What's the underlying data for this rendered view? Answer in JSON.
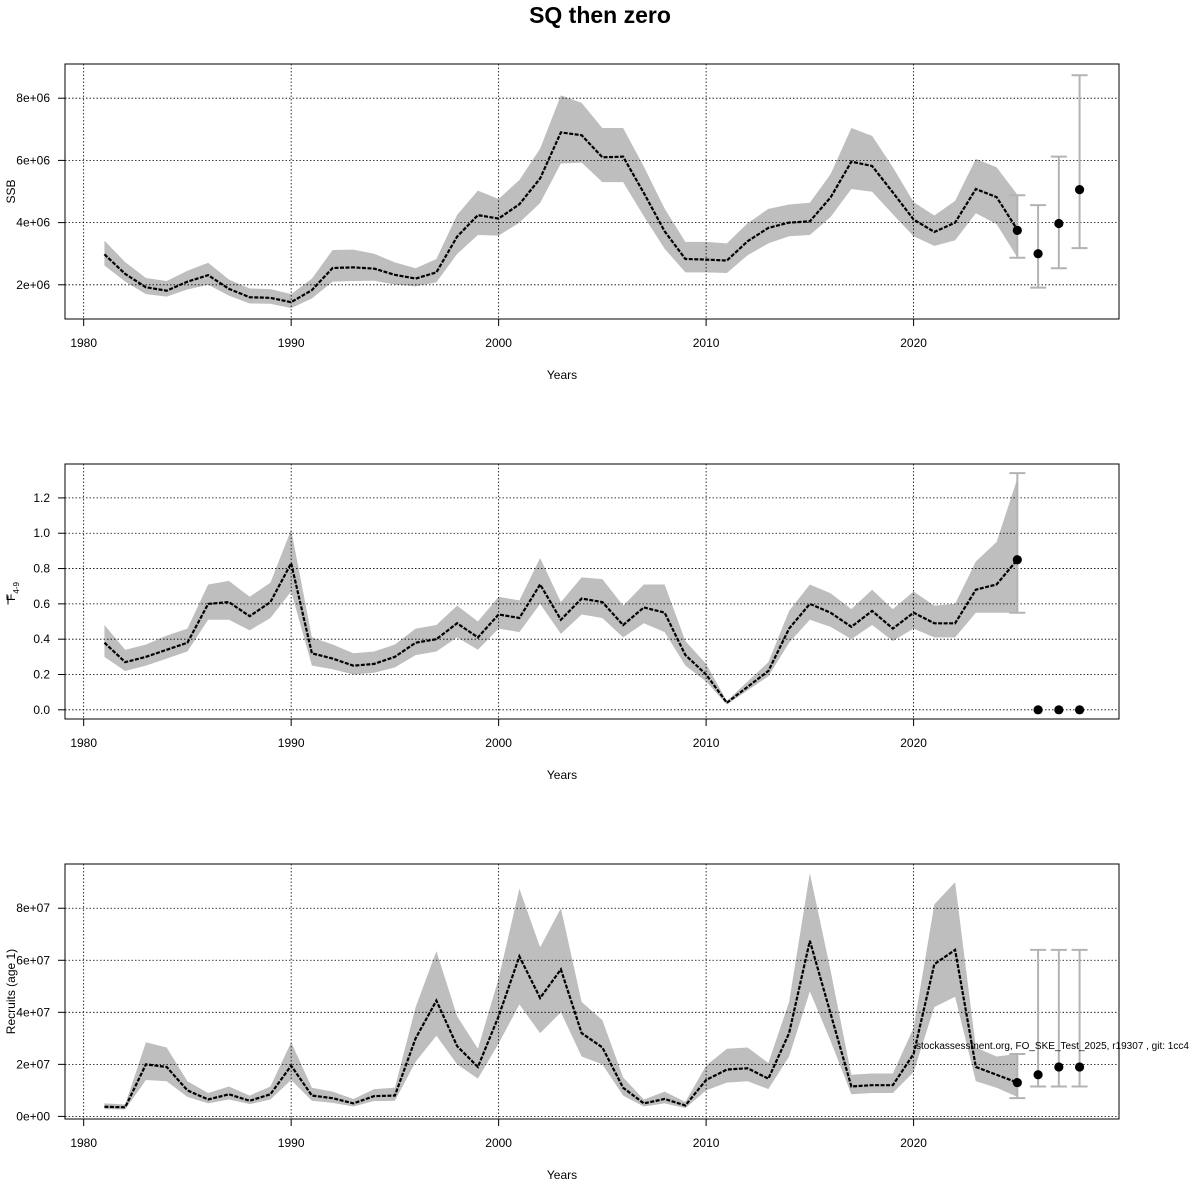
{
  "title": "SQ then zero",
  "credit": "stockassessment.org, FO_SKE_Test_2025, r19307 , git: 1cc4",
  "colors": {
    "band": "#bebebe",
    "line": "#000000",
    "grid": "#000000",
    "errorbar": "#b3b3b3",
    "point": "#000000"
  },
  "chart_data": [
    {
      "type": "line",
      "id": "ssb",
      "ylabel": "SSB",
      "xlabel": "Years",
      "xlim": [
        1979.1,
        2029.9
      ],
      "ylim": [
        900000,
        9100000
      ],
      "x_ticks": [
        1980,
        1990,
        2000,
        2010,
        2020
      ],
      "y_ticks": [
        2000000,
        4000000,
        6000000,
        8000000
      ],
      "y_tick_labels": [
        "2e+06",
        "4e+06",
        "6e+06",
        "8e+06"
      ],
      "grid": true,
      "years": [
        1981,
        1982,
        1983,
        1984,
        1985,
        1986,
        1987,
        1988,
        1989,
        1990,
        1991,
        1992,
        1993,
        1994,
        1995,
        1996,
        1997,
        1998,
        1999,
        2000,
        2001,
        2002,
        2003,
        2004,
        2005,
        2006,
        2007,
        2008,
        2009,
        2010,
        2011,
        2012,
        2013,
        2014,
        2015,
        2016,
        2017,
        2018,
        2019,
        2020,
        2021,
        2022,
        2023,
        2024,
        2025
      ],
      "estimate": [
        2980000,
        2350000,
        1920000,
        1810000,
        2100000,
        2310000,
        1870000,
        1600000,
        1580000,
        1440000,
        1830000,
        2540000,
        2560000,
        2520000,
        2320000,
        2200000,
        2400000,
        3550000,
        4240000,
        4130000,
        4590000,
        5420000,
        6900000,
        6810000,
        6100000,
        6120000,
        4950000,
        3720000,
        2830000,
        2810000,
        2780000,
        3400000,
        3830000,
        4000000,
        4040000,
        4810000,
        5960000,
        5820000,
        4970000,
        4100000,
        3700000,
        4000000,
        5080000,
        4820000,
        3770000
      ],
      "lower": [
        2620000,
        2100000,
        1700000,
        1620000,
        1850000,
        2000000,
        1650000,
        1400000,
        1390000,
        1250000,
        1560000,
        2100000,
        2120000,
        2130000,
        2010000,
        1950000,
        2080000,
        2990000,
        3600000,
        3580000,
        4000000,
        4630000,
        5900000,
        5930000,
        5300000,
        5300000,
        4200000,
        3160000,
        2400000,
        2400000,
        2380000,
        2950000,
        3330000,
        3560000,
        3600000,
        4180000,
        5080000,
        4990000,
        4270000,
        3560000,
        3250000,
        3430000,
        4300000,
        3950000,
        2880000
      ],
      "upper": [
        3420000,
        2730000,
        2220000,
        2120000,
        2450000,
        2710000,
        2170000,
        1880000,
        1860000,
        1700000,
        2200000,
        3120000,
        3130000,
        3000000,
        2720000,
        2530000,
        2830000,
        4250000,
        5030000,
        4760000,
        5370000,
        6380000,
        8090000,
        7850000,
        7040000,
        7040000,
        5800000,
        4450000,
        3380000,
        3380000,
        3330000,
        3980000,
        4440000,
        4580000,
        4640000,
        5560000,
        7040000,
        6790000,
        5780000,
        4660000,
        4230000,
        4700000,
        6050000,
        5780000,
        4900000
      ],
      "projection": {
        "years": [
          2025,
          2026,
          2027,
          2028
        ],
        "estimate": [
          3750000,
          3000000,
          3970000,
          5060000
        ],
        "lower": [
          2870000,
          1910000,
          2530000,
          3180000
        ],
        "upper": [
          4880000,
          4560000,
          6120000,
          8740000
        ]
      }
    },
    {
      "type": "line",
      "id": "fbar",
      "ylabel": "F4-9",
      "ylabel_main": "F",
      "ylabel_sub": "4-9",
      "xlabel": "Years",
      "xlim": [
        1979.1,
        2029.9
      ],
      "ylim": [
        -0.052,
        1.392
      ],
      "x_ticks": [
        1980,
        1990,
        2000,
        2010,
        2020
      ],
      "y_ticks": [
        0,
        0.2,
        0.4,
        0.6,
        0.8,
        1.0,
        1.2
      ],
      "y_tick_labels": [
        "0.0",
        "0.2",
        "0.4",
        "0.6",
        "0.8",
        "1.0",
        "1.2"
      ],
      "grid": true,
      "years": [
        1981,
        1982,
        1983,
        1984,
        1985,
        1986,
        1987,
        1988,
        1989,
        1990,
        1991,
        1992,
        1993,
        1994,
        1995,
        1996,
        1997,
        1998,
        1999,
        2000,
        2001,
        2002,
        2003,
        2004,
        2005,
        2006,
        2007,
        2008,
        2009,
        2010,
        2011,
        2012,
        2013,
        2014,
        2015,
        2016,
        2017,
        2018,
        2019,
        2020,
        2021,
        2022,
        2023,
        2024,
        2025
      ],
      "estimate": [
        0.38,
        0.27,
        0.3,
        0.34,
        0.38,
        0.6,
        0.61,
        0.53,
        0.61,
        0.83,
        0.32,
        0.29,
        0.25,
        0.26,
        0.3,
        0.38,
        0.4,
        0.49,
        0.41,
        0.54,
        0.52,
        0.71,
        0.51,
        0.63,
        0.61,
        0.48,
        0.58,
        0.55,
        0.31,
        0.2,
        0.04,
        0.13,
        0.22,
        0.46,
        0.6,
        0.55,
        0.47,
        0.56,
        0.46,
        0.55,
        0.49,
        0.49,
        0.68,
        0.71,
        0.85
      ],
      "lower": [
        0.3,
        0.22,
        0.25,
        0.29,
        0.33,
        0.51,
        0.51,
        0.45,
        0.52,
        0.67,
        0.25,
        0.23,
        0.2,
        0.21,
        0.24,
        0.31,
        0.33,
        0.41,
        0.34,
        0.46,
        0.44,
        0.6,
        0.43,
        0.54,
        0.52,
        0.41,
        0.49,
        0.44,
        0.25,
        0.16,
        0.03,
        0.11,
        0.19,
        0.38,
        0.51,
        0.47,
        0.4,
        0.48,
        0.39,
        0.46,
        0.41,
        0.41,
        0.55,
        0.55,
        0.55
      ],
      "upper": [
        0.48,
        0.34,
        0.37,
        0.42,
        0.46,
        0.71,
        0.73,
        0.64,
        0.72,
        1.02,
        0.41,
        0.37,
        0.32,
        0.33,
        0.37,
        0.46,
        0.48,
        0.59,
        0.5,
        0.64,
        0.62,
        0.86,
        0.61,
        0.75,
        0.74,
        0.59,
        0.71,
        0.71,
        0.39,
        0.26,
        0.05,
        0.16,
        0.27,
        0.56,
        0.71,
        0.66,
        0.57,
        0.68,
        0.57,
        0.67,
        0.59,
        0.6,
        0.84,
        0.95,
        1.31
      ],
      "projection": {
        "years": [
          2025,
          2026,
          2027,
          2028
        ],
        "estimate": [
          0.85,
          0.0,
          0.0,
          0.0
        ],
        "lower": [
          0.55,
          null,
          null,
          null
        ],
        "upper": [
          1.34,
          null,
          null,
          null
        ]
      }
    },
    {
      "type": "line",
      "id": "recruits",
      "ylabel": "Recruits (age 1)",
      "xlabel": "Years",
      "xlim": [
        1979.1,
        2029.9
      ],
      "ylim": [
        -1000000,
        97000000
      ],
      "x_ticks": [
        1980,
        1990,
        2000,
        2010,
        2020
      ],
      "y_ticks": [
        0,
        20000000,
        40000000,
        60000000,
        80000000
      ],
      "y_tick_labels": [
        "0e+00",
        "2e+07",
        "4e+07",
        "6e+07",
        "8e+07"
      ],
      "grid": true,
      "years": [
        1981,
        1982,
        1983,
        1984,
        1985,
        1986,
        1987,
        1988,
        1989,
        1990,
        1991,
        1992,
        1993,
        1994,
        1995,
        1996,
        1997,
        1998,
        1999,
        2000,
        2001,
        2002,
        2003,
        2004,
        2005,
        2006,
        2007,
        2008,
        2009,
        2010,
        2011,
        2012,
        2013,
        2014,
        2015,
        2016,
        2017,
        2018,
        2019,
        2020,
        2021,
        2022,
        2023,
        2024,
        2025
      ],
      "estimate": [
        3700000,
        3500000,
        20000000,
        19000000,
        10000000,
        6500000,
        8500000,
        6000000,
        8500000,
        19500000,
        8000000,
        7000000,
        5000000,
        7800000,
        8000000,
        30000000,
        44500000,
        27000000,
        19000000,
        38500000,
        61500000,
        45500000,
        56500000,
        32000000,
        26500000,
        11000000,
        5000000,
        6700000,
        4200000,
        14000000,
        18000000,
        18500000,
        14500000,
        32000000,
        67500000,
        39500000,
        11500000,
        12000000,
        12000000,
        24000000,
        58500000,
        64000000,
        19000000,
        16000000,
        13000000
      ],
      "lower": [
        2800000,
        2700000,
        14000000,
        13500000,
        7500000,
        5000000,
        6500000,
        4700000,
        6500000,
        14000000,
        6000000,
        5200000,
        3800000,
        5900000,
        6000000,
        21000000,
        31000000,
        20000000,
        14500000,
        28000000,
        43000000,
        32000000,
        40000000,
        23000000,
        20000000,
        8000000,
        3800000,
        5000000,
        3200000,
        10000000,
        13000000,
        13500000,
        10500000,
        23000000,
        48000000,
        29000000,
        8500000,
        9000000,
        9000000,
        17000000,
        42000000,
        46000000,
        13500000,
        11000000,
        7500000
      ],
      "upper": [
        5000000,
        4600000,
        28500000,
        26500000,
        13500000,
        9000000,
        11500000,
        8000000,
        11500000,
        28500000,
        11000000,
        9500000,
        6700000,
        10500000,
        11000000,
        42000000,
        63500000,
        38500000,
        26000000,
        53000000,
        87500000,
        65000000,
        80000000,
        44000000,
        37000000,
        15000000,
        6500000,
        9500000,
        5600000,
        19500000,
        26000000,
        26500000,
        20500000,
        44000000,
        93500000,
        56000000,
        16000000,
        16500000,
        16500000,
        34000000,
        81500000,
        90000000,
        26500000,
        23000000,
        24000000
      ],
      "projection": {
        "years": [
          2025,
          2026,
          2027,
          2028
        ],
        "estimate": [
          13000000,
          16000000,
          19000000,
          19000000
        ],
        "lower": [
          7000000,
          11500000,
          11500000,
          11500000
        ],
        "upper": [
          24000000,
          64000000,
          64000000,
          64000000
        ]
      }
    }
  ]
}
